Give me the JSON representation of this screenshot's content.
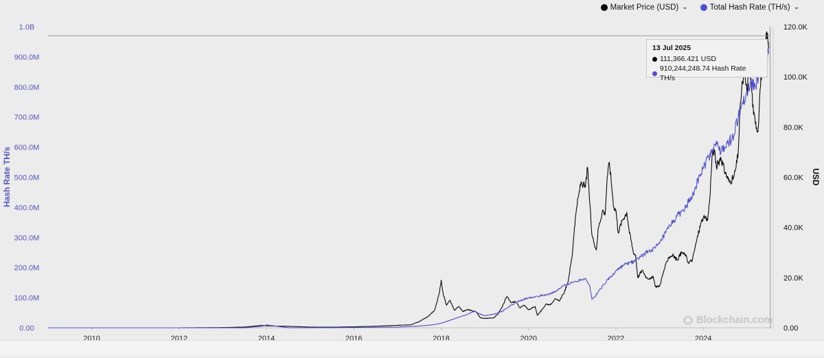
{
  "colors": {
    "price": "#0a0a0a",
    "hashrate": "#4f4fd1",
    "axis_left_text": "#5555cc",
    "axis_right_text": "#111111",
    "crosshair": "#9a9a9a",
    "background": "#ececec"
  },
  "legend": {
    "items": [
      {
        "label": "Market Price (USD)",
        "color": "#0a0a0a"
      },
      {
        "label": "Total Hash Rate (TH/s)",
        "color": "#4f4fd1"
      }
    ]
  },
  "tooltip": {
    "date": "13 Jul 2025",
    "price_text": "111,366.421 USD",
    "hash_text": "910,244,248.74 Hash Rate TH/s"
  },
  "watermark": {
    "text": "Blockchain.com"
  },
  "chart_data": {
    "type": "line",
    "xlabel": "",
    "x_ticks": [
      "2010",
      "2012",
      "2014",
      "2016",
      "2018",
      "2020",
      "2022",
      "2024"
    ],
    "xlim": [
      2009.0,
      2025.6
    ],
    "y_left": {
      "label": "Hash Rate TH/s",
      "lim": [
        0,
        1000000000
      ],
      "ticks": [
        "0.00",
        "100.0M",
        "200.0M",
        "300.0M",
        "400.0M",
        "500.0M",
        "600.0M",
        "700.0M",
        "800.0M",
        "900.0M",
        "1.0B"
      ]
    },
    "y_right": {
      "label": "USD",
      "lim": [
        0,
        120000
      ],
      "ticks": [
        "0.00",
        "20.0K",
        "40.0K",
        "60.0K",
        "80.0K",
        "100.0K",
        "120.0K"
      ]
    },
    "crosshair": {
      "x": 2025.53,
      "y_left": 970000000
    },
    "series": [
      {
        "name": "Market Price (USD)",
        "axis": "right",
        "points": [
          [
            2009.0,
            0
          ],
          [
            2010.0,
            0
          ],
          [
            2011.0,
            5
          ],
          [
            2012.0,
            10
          ],
          [
            2013.0,
            100
          ],
          [
            2013.5,
            300
          ],
          [
            2013.9,
            1000
          ],
          [
            2014.0,
            800
          ],
          [
            2014.5,
            600
          ],
          [
            2015.0,
            300
          ],
          [
            2015.5,
            250
          ],
          [
            2016.0,
            400
          ],
          [
            2016.5,
            650
          ],
          [
            2017.0,
            1000
          ],
          [
            2017.3,
            1200
          ],
          [
            2017.5,
            2500
          ],
          [
            2017.7,
            4500
          ],
          [
            2017.85,
            7000
          ],
          [
            2017.96,
            14000
          ],
          [
            2018.0,
            19000
          ],
          [
            2018.04,
            14000
          ],
          [
            2018.12,
            9000
          ],
          [
            2018.2,
            11000
          ],
          [
            2018.3,
            7000
          ],
          [
            2018.4,
            8500
          ],
          [
            2018.5,
            6500
          ],
          [
            2018.6,
            7300
          ],
          [
            2018.8,
            6400
          ],
          [
            2018.9,
            4000
          ],
          [
            2019.0,
            3700
          ],
          [
            2019.2,
            4000
          ],
          [
            2019.3,
            5500
          ],
          [
            2019.4,
            8500
          ],
          [
            2019.5,
            12500
          ],
          [
            2019.6,
            10000
          ],
          [
            2019.7,
            10500
          ],
          [
            2019.8,
            8000
          ],
          [
            2019.9,
            9000
          ],
          [
            2020.0,
            7200
          ],
          [
            2020.15,
            8500
          ],
          [
            2020.2,
            5000
          ],
          [
            2020.3,
            7000
          ],
          [
            2020.4,
            9500
          ],
          [
            2020.5,
            9200
          ],
          [
            2020.6,
            11500
          ],
          [
            2020.7,
            10700
          ],
          [
            2020.8,
            13500
          ],
          [
            2020.9,
            18000
          ],
          [
            2021.0,
            29000
          ],
          [
            2021.05,
            40000
          ],
          [
            2021.1,
            48000
          ],
          [
            2021.2,
            58000
          ],
          [
            2021.3,
            56000
          ],
          [
            2021.35,
            64000
          ],
          [
            2021.4,
            50000
          ],
          [
            2021.45,
            37000
          ],
          [
            2021.5,
            34000
          ],
          [
            2021.55,
            31000
          ],
          [
            2021.6,
            40000
          ],
          [
            2021.7,
            47000
          ],
          [
            2021.75,
            45000
          ],
          [
            2021.8,
            60000
          ],
          [
            2021.85,
            66000
          ],
          [
            2021.9,
            57000
          ],
          [
            2021.95,
            48000
          ],
          [
            2022.0,
            47000
          ],
          [
            2022.05,
            38000
          ],
          [
            2022.15,
            43000
          ],
          [
            2022.25,
            46000
          ],
          [
            2022.3,
            39000
          ],
          [
            2022.4,
            30000
          ],
          [
            2022.45,
            29000
          ],
          [
            2022.5,
            20000
          ],
          [
            2022.6,
            23000
          ],
          [
            2022.7,
            20000
          ],
          [
            2022.8,
            19500
          ],
          [
            2022.85,
            20500
          ],
          [
            2022.9,
            16500
          ],
          [
            2023.0,
            16600
          ],
          [
            2023.1,
            23000
          ],
          [
            2023.2,
            28000
          ],
          [
            2023.3,
            29000
          ],
          [
            2023.4,
            27000
          ],
          [
            2023.5,
            30000
          ],
          [
            2023.6,
            29000
          ],
          [
            2023.65,
            26000
          ],
          [
            2023.75,
            27000
          ],
          [
            2023.85,
            35000
          ],
          [
            2023.95,
            42000
          ],
          [
            2024.0,
            44000
          ],
          [
            2024.1,
            43000
          ],
          [
            2024.15,
            52000
          ],
          [
            2024.2,
            68000
          ],
          [
            2024.25,
            71000
          ],
          [
            2024.3,
            64000
          ],
          [
            2024.4,
            68000
          ],
          [
            2024.5,
            62000
          ],
          [
            2024.6,
            58000
          ],
          [
            2024.7,
            60000
          ],
          [
            2024.75,
            64000
          ],
          [
            2024.8,
            70000
          ],
          [
            2024.85,
            90000
          ],
          [
            2024.9,
            98000
          ],
          [
            2024.95,
            100000
          ],
          [
            2025.0,
            94000
          ],
          [
            2025.05,
            104000
          ],
          [
            2025.1,
            97000
          ],
          [
            2025.15,
            85000
          ],
          [
            2025.2,
            82000
          ],
          [
            2025.25,
            78000
          ],
          [
            2025.3,
            95000
          ],
          [
            2025.35,
            105000
          ],
          [
            2025.4,
            108000
          ],
          [
            2025.45,
            118000
          ],
          [
            2025.5,
            111366
          ]
        ]
      },
      {
        "name": "Total Hash Rate (TH/s)",
        "axis": "left",
        "points": [
          [
            2009.0,
            0
          ],
          [
            2011.0,
            10
          ],
          [
            2012.0,
            20
          ],
          [
            2013.0,
            100
          ],
          [
            2013.5,
            300
          ],
          [
            2013.9,
            5000000
          ],
          [
            2014.0,
            10000000
          ],
          [
            2014.5,
            150000
          ],
          [
            2015.0,
            350000
          ],
          [
            2015.5,
            450000
          ],
          [
            2016.0,
            1000000
          ],
          [
            2016.5,
            1500000
          ],
          [
            2017.0,
            2500000
          ],
          [
            2017.5,
            6000000
          ],
          [
            2017.8,
            10000000
          ],
          [
            2018.0,
            15000000
          ],
          [
            2018.2,
            25000000
          ],
          [
            2018.4,
            35000000
          ],
          [
            2018.6,
            45000000
          ],
          [
            2018.75,
            55000000
          ],
          [
            2018.9,
            45000000
          ],
          [
            2019.0,
            40000000
          ],
          [
            2019.2,
            45000000
          ],
          [
            2019.4,
            55000000
          ],
          [
            2019.6,
            75000000
          ],
          [
            2019.8,
            90000000
          ],
          [
            2020.0,
            100000000
          ],
          [
            2020.2,
            105000000
          ],
          [
            2020.4,
            110000000
          ],
          [
            2020.6,
            118000000
          ],
          [
            2020.8,
            140000000
          ],
          [
            2021.0,
            150000000
          ],
          [
            2021.2,
            160000000
          ],
          [
            2021.3,
            165000000
          ],
          [
            2021.4,
            140000000
          ],
          [
            2021.45,
            95000000
          ],
          [
            2021.5,
            100000000
          ],
          [
            2021.6,
            120000000
          ],
          [
            2021.7,
            140000000
          ],
          [
            2021.8,
            160000000
          ],
          [
            2021.9,
            170000000
          ],
          [
            2022.0,
            190000000
          ],
          [
            2022.2,
            210000000
          ],
          [
            2022.4,
            220000000
          ],
          [
            2022.5,
            230000000
          ],
          [
            2022.7,
            250000000
          ],
          [
            2022.9,
            265000000
          ],
          [
            2023.0,
            280000000
          ],
          [
            2023.2,
            330000000
          ],
          [
            2023.4,
            370000000
          ],
          [
            2023.6,
            400000000
          ],
          [
            2023.8,
            460000000
          ],
          [
            2024.0,
            530000000
          ],
          [
            2024.2,
            590000000
          ],
          [
            2024.3,
            620000000
          ],
          [
            2024.4,
            580000000
          ],
          [
            2024.5,
            600000000
          ],
          [
            2024.6,
            620000000
          ],
          [
            2024.7,
            640000000
          ],
          [
            2024.8,
            700000000
          ],
          [
            2024.9,
            750000000
          ],
          [
            2025.0,
            780000000
          ],
          [
            2025.1,
            820000000
          ],
          [
            2025.2,
            800000000
          ],
          [
            2025.3,
            860000000
          ],
          [
            2025.4,
            900000000
          ],
          [
            2025.5,
            910244249
          ]
        ]
      }
    ]
  }
}
